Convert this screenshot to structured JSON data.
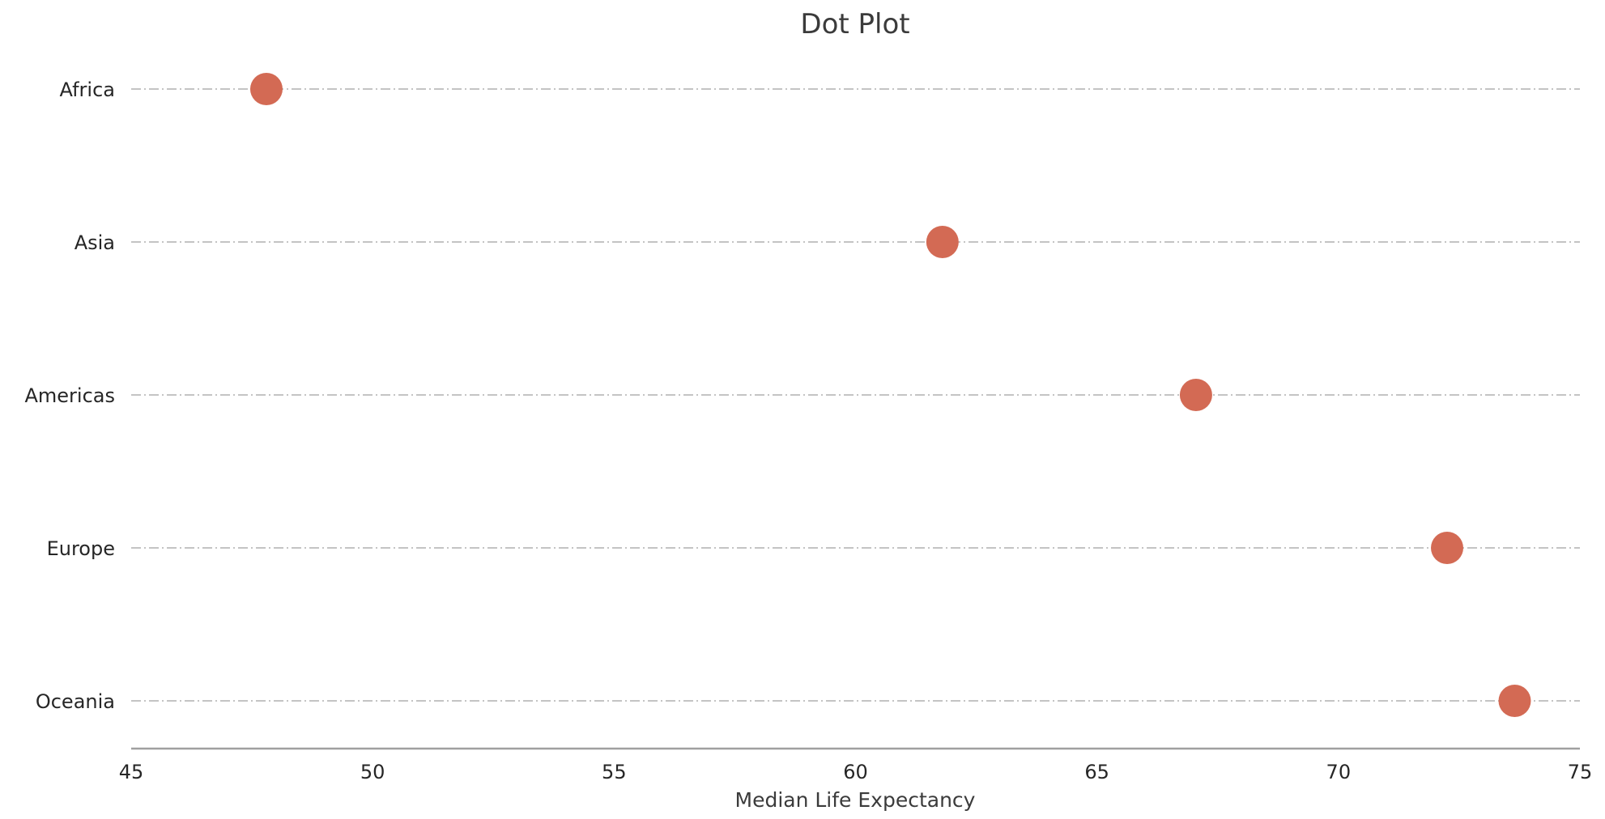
{
  "chart_data": {
    "type": "scatter",
    "title": "Dot Plot",
    "xlabel": "Median Life Expectancy",
    "ylabel": "",
    "xlim": [
      45,
      75
    ],
    "xticks": [
      45,
      50,
      55,
      60,
      65,
      70,
      75
    ],
    "grid": false,
    "categories": [
      "Africa",
      "Asia",
      "Americas",
      "Europe",
      "Oceania"
    ],
    "values": [
      47.8,
      61.8,
      67.05,
      72.25,
      73.65
    ],
    "marker_color": "#d36a54",
    "line_color": "#b0b0b0"
  }
}
